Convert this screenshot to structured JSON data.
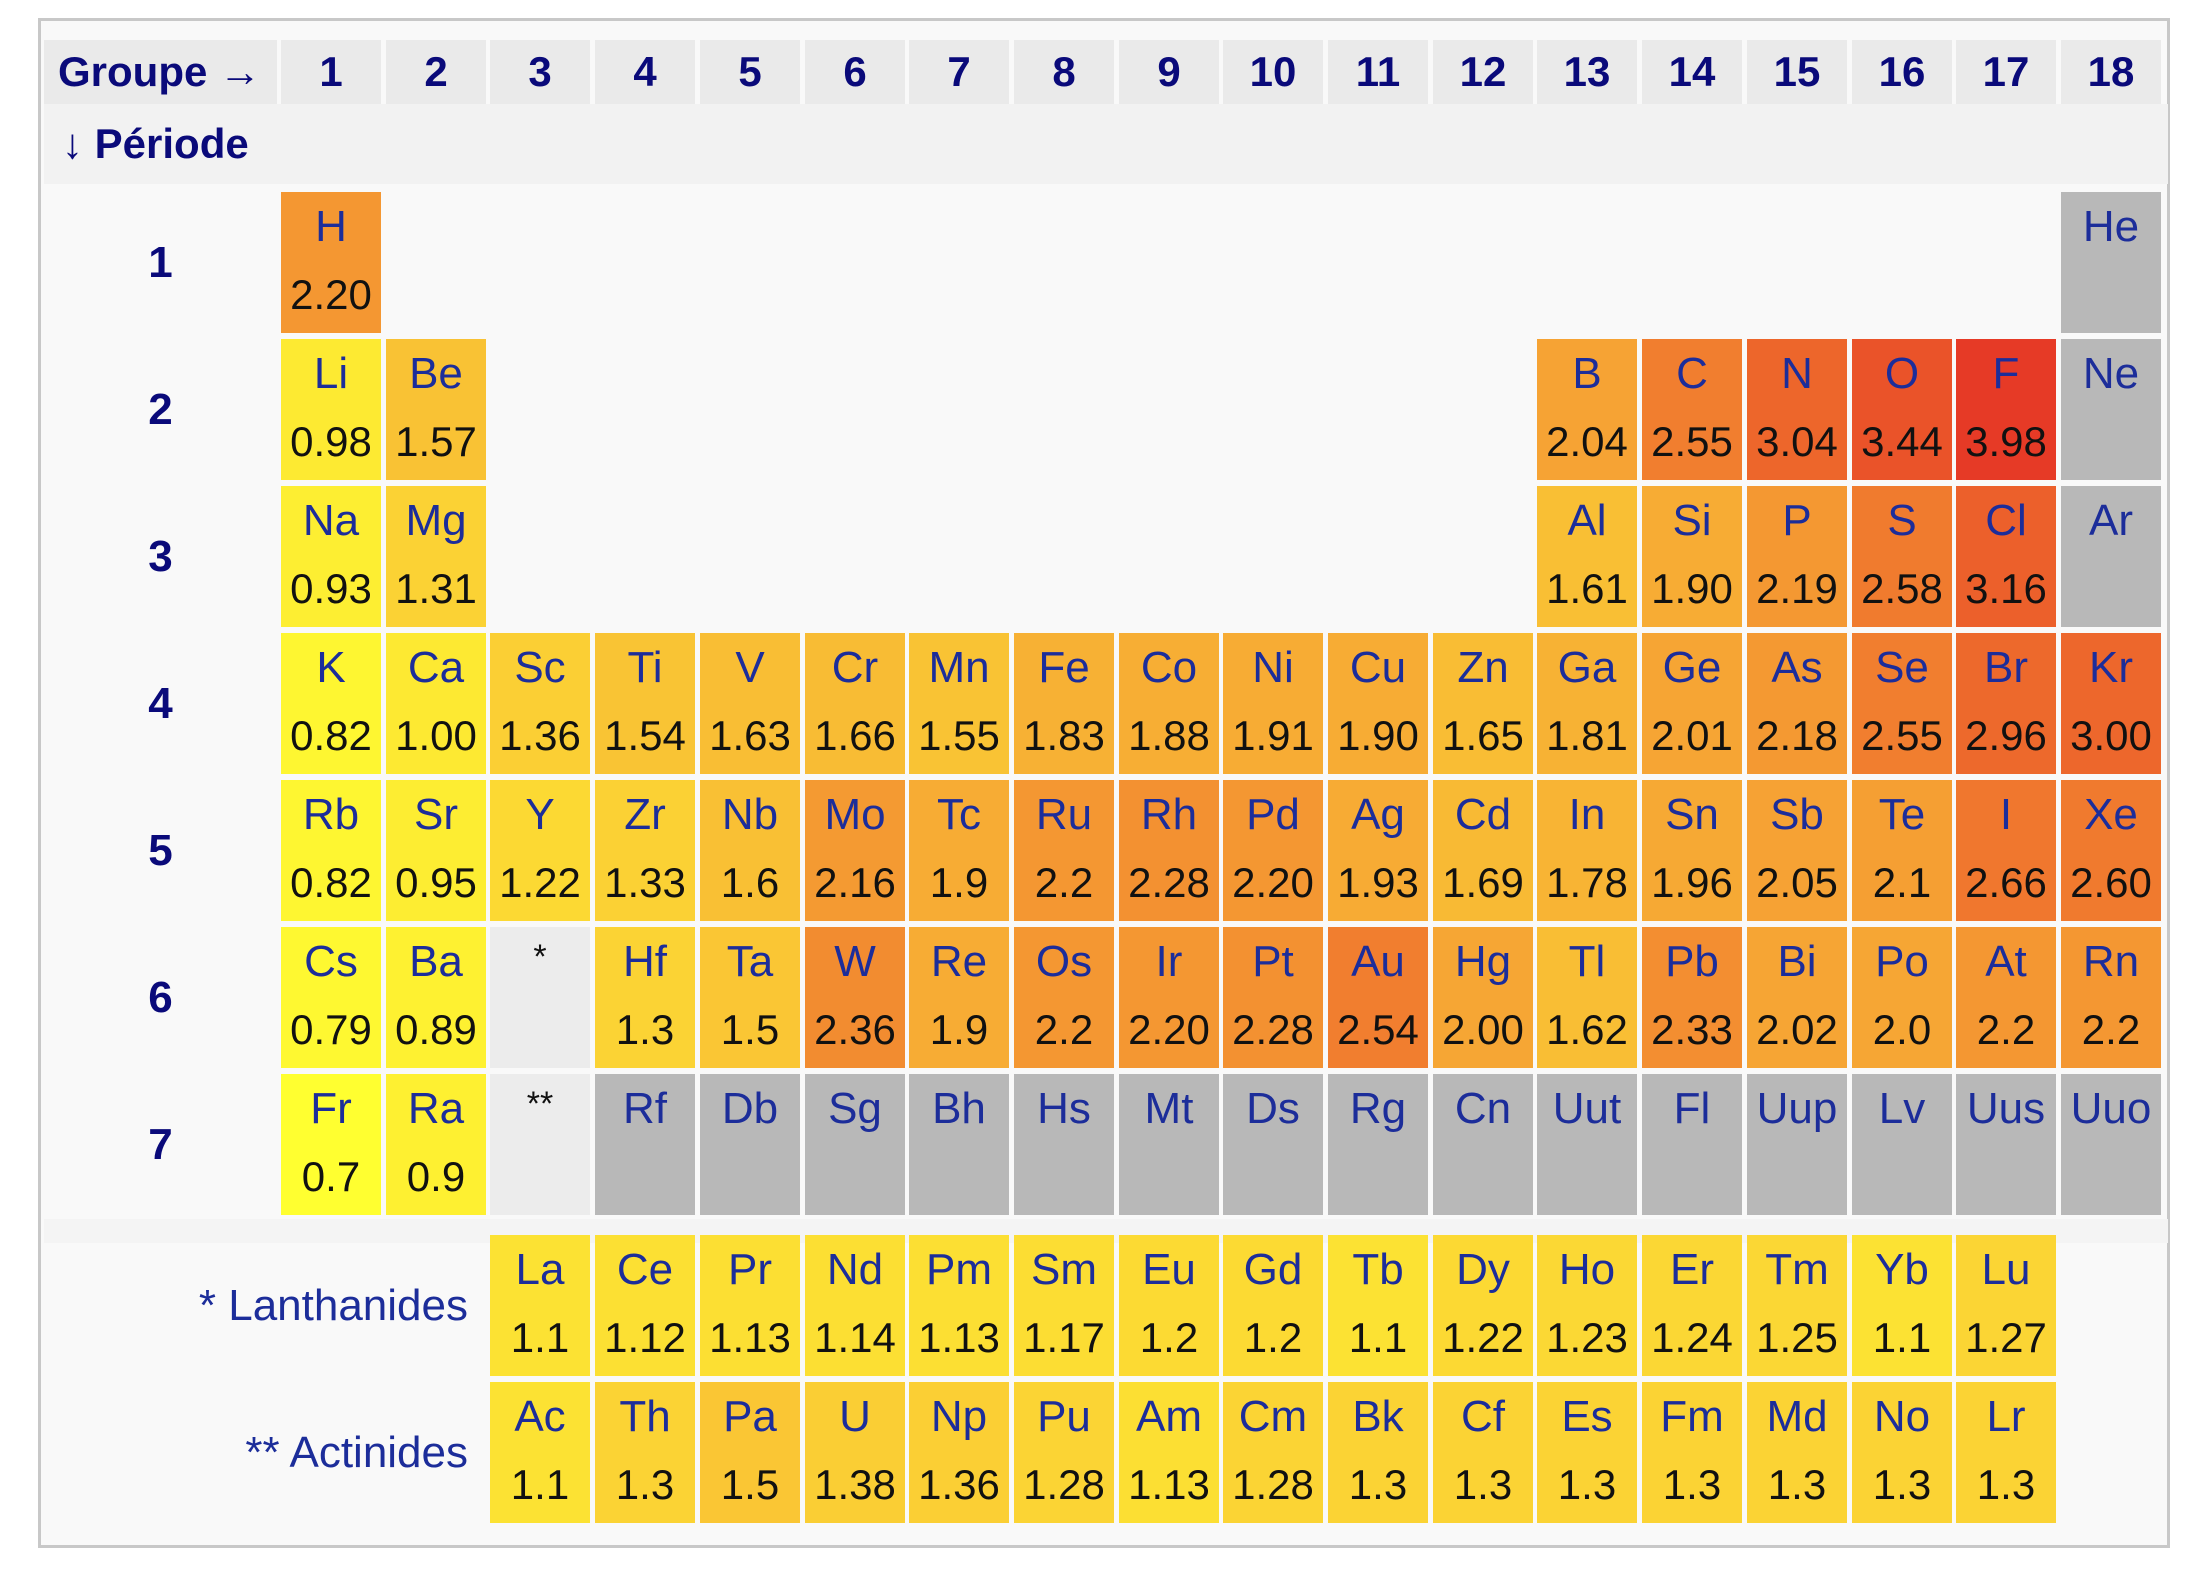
{
  "header": {
    "groupe_label": "Groupe →",
    "periode_label": "↓ Période",
    "groups": [
      "1",
      "2",
      "3",
      "4",
      "5",
      "6",
      "7",
      "8",
      "9",
      "10",
      "11",
      "12",
      "13",
      "14",
      "15",
      "16",
      "17",
      "18"
    ]
  },
  "periods": [
    "1",
    "2",
    "3",
    "4",
    "5",
    "6",
    "7"
  ],
  "colors": {
    "no_value": "#b8b8b8",
    "scale": [
      "#ffff30",
      "#fbd334",
      "#f6a634",
      "#f07a2e",
      "#e63a26"
    ]
  },
  "elements": [
    {
      "s": "H",
      "v": "2.20",
      "p": 1,
      "g": 1
    },
    {
      "s": "He",
      "v": "",
      "p": 1,
      "g": 18
    },
    {
      "s": "Li",
      "v": "0.98",
      "p": 2,
      "g": 1
    },
    {
      "s": "Be",
      "v": "1.57",
      "p": 2,
      "g": 2
    },
    {
      "s": "B",
      "v": "2.04",
      "p": 2,
      "g": 13
    },
    {
      "s": "C",
      "v": "2.55",
      "p": 2,
      "g": 14
    },
    {
      "s": "N",
      "v": "3.04",
      "p": 2,
      "g": 15
    },
    {
      "s": "O",
      "v": "3.44",
      "p": 2,
      "g": 16
    },
    {
      "s": "F",
      "v": "3.98",
      "p": 2,
      "g": 17
    },
    {
      "s": "Ne",
      "v": "",
      "p": 2,
      "g": 18
    },
    {
      "s": "Na",
      "v": "0.93",
      "p": 3,
      "g": 1
    },
    {
      "s": "Mg",
      "v": "1.31",
      "p": 3,
      "g": 2
    },
    {
      "s": "Al",
      "v": "1.61",
      "p": 3,
      "g": 13
    },
    {
      "s": "Si",
      "v": "1.90",
      "p": 3,
      "g": 14
    },
    {
      "s": "P",
      "v": "2.19",
      "p": 3,
      "g": 15
    },
    {
      "s": "S",
      "v": "2.58",
      "p": 3,
      "g": 16
    },
    {
      "s": "Cl",
      "v": "3.16",
      "p": 3,
      "g": 17
    },
    {
      "s": "Ar",
      "v": "",
      "p": 3,
      "g": 18
    },
    {
      "s": "K",
      "v": "0.82",
      "p": 4,
      "g": 1
    },
    {
      "s": "Ca",
      "v": "1.00",
      "p": 4,
      "g": 2
    },
    {
      "s": "Sc",
      "v": "1.36",
      "p": 4,
      "g": 3
    },
    {
      "s": "Ti",
      "v": "1.54",
      "p": 4,
      "g": 4
    },
    {
      "s": "V",
      "v": "1.63",
      "p": 4,
      "g": 5
    },
    {
      "s": "Cr",
      "v": "1.66",
      "p": 4,
      "g": 6
    },
    {
      "s": "Mn",
      "v": "1.55",
      "p": 4,
      "g": 7
    },
    {
      "s": "Fe",
      "v": "1.83",
      "p": 4,
      "g": 8
    },
    {
      "s": "Co",
      "v": "1.88",
      "p": 4,
      "g": 9
    },
    {
      "s": "Ni",
      "v": "1.91",
      "p": 4,
      "g": 10
    },
    {
      "s": "Cu",
      "v": "1.90",
      "p": 4,
      "g": 11
    },
    {
      "s": "Zn",
      "v": "1.65",
      "p": 4,
      "g": 12
    },
    {
      "s": "Ga",
      "v": "1.81",
      "p": 4,
      "g": 13
    },
    {
      "s": "Ge",
      "v": "2.01",
      "p": 4,
      "g": 14
    },
    {
      "s": "As",
      "v": "2.18",
      "p": 4,
      "g": 15
    },
    {
      "s": "Se",
      "v": "2.55",
      "p": 4,
      "g": 16
    },
    {
      "s": "Br",
      "v": "2.96",
      "p": 4,
      "g": 17
    },
    {
      "s": "Kr",
      "v": "3.00",
      "p": 4,
      "g": 18
    },
    {
      "s": "Rb",
      "v": "0.82",
      "p": 5,
      "g": 1
    },
    {
      "s": "Sr",
      "v": "0.95",
      "p": 5,
      "g": 2
    },
    {
      "s": "Y",
      "v": "1.22",
      "p": 5,
      "g": 3
    },
    {
      "s": "Zr",
      "v": "1.33",
      "p": 5,
      "g": 4
    },
    {
      "s": "Nb",
      "v": "1.6",
      "p": 5,
      "g": 5
    },
    {
      "s": "Mo",
      "v": "2.16",
      "p": 5,
      "g": 6
    },
    {
      "s": "Tc",
      "v": "1.9",
      "p": 5,
      "g": 7
    },
    {
      "s": "Ru",
      "v": "2.2",
      "p": 5,
      "g": 8
    },
    {
      "s": "Rh",
      "v": "2.28",
      "p": 5,
      "g": 9
    },
    {
      "s": "Pd",
      "v": "2.20",
      "p": 5,
      "g": 10
    },
    {
      "s": "Ag",
      "v": "1.93",
      "p": 5,
      "g": 11
    },
    {
      "s": "Cd",
      "v": "1.69",
      "p": 5,
      "g": 12
    },
    {
      "s": "In",
      "v": "1.78",
      "p": 5,
      "g": 13
    },
    {
      "s": "Sn",
      "v": "1.96",
      "p": 5,
      "g": 14
    },
    {
      "s": "Sb",
      "v": "2.05",
      "p": 5,
      "g": 15
    },
    {
      "s": "Te",
      "v": "2.1",
      "p": 5,
      "g": 16
    },
    {
      "s": "I",
      "v": "2.66",
      "p": 5,
      "g": 17
    },
    {
      "s": "Xe",
      "v": "2.60",
      "p": 5,
      "g": 18
    },
    {
      "s": "Cs",
      "v": "0.79",
      "p": 6,
      "g": 1
    },
    {
      "s": "Ba",
      "v": "0.89",
      "p": 6,
      "g": 2
    },
    {
      "s": "Hf",
      "v": "1.3",
      "p": 6,
      "g": 4
    },
    {
      "s": "Ta",
      "v": "1.5",
      "p": 6,
      "g": 5
    },
    {
      "s": "W",
      "v": "2.36",
      "p": 6,
      "g": 6
    },
    {
      "s": "Re",
      "v": "1.9",
      "p": 6,
      "g": 7
    },
    {
      "s": "Os",
      "v": "2.2",
      "p": 6,
      "g": 8
    },
    {
      "s": "Ir",
      "v": "2.20",
      "p": 6,
      "g": 9
    },
    {
      "s": "Pt",
      "v": "2.28",
      "p": 6,
      "g": 10
    },
    {
      "s": "Au",
      "v": "2.54",
      "p": 6,
      "g": 11
    },
    {
      "s": "Hg",
      "v": "2.00",
      "p": 6,
      "g": 12
    },
    {
      "s": "Tl",
      "v": "1.62",
      "p": 6,
      "g": 13
    },
    {
      "s": "Pb",
      "v": "2.33",
      "p": 6,
      "g": 14
    },
    {
      "s": "Bi",
      "v": "2.02",
      "p": 6,
      "g": 15
    },
    {
      "s": "Po",
      "v": "2.0",
      "p": 6,
      "g": 16
    },
    {
      "s": "At",
      "v": "2.2",
      "p": 6,
      "g": 17
    },
    {
      "s": "Rn",
      "v": "2.2",
      "p": 6,
      "g": 18
    },
    {
      "s": "Fr",
      "v": "0.7",
      "p": 7,
      "g": 1
    },
    {
      "s": "Ra",
      "v": "0.9",
      "p": 7,
      "g": 2
    },
    {
      "s": "Rf",
      "v": "",
      "p": 7,
      "g": 4
    },
    {
      "s": "Db",
      "v": "",
      "p": 7,
      "g": 5
    },
    {
      "s": "Sg",
      "v": "",
      "p": 7,
      "g": 6
    },
    {
      "s": "Bh",
      "v": "",
      "p": 7,
      "g": 7
    },
    {
      "s": "Hs",
      "v": "",
      "p": 7,
      "g": 8
    },
    {
      "s": "Mt",
      "v": "",
      "p": 7,
      "g": 9
    },
    {
      "s": "Ds",
      "v": "",
      "p": 7,
      "g": 10
    },
    {
      "s": "Rg",
      "v": "",
      "p": 7,
      "g": 11
    },
    {
      "s": "Cn",
      "v": "",
      "p": 7,
      "g": 12
    },
    {
      "s": "Uut",
      "v": "",
      "p": 7,
      "g": 13
    },
    {
      "s": "Fl",
      "v": "",
      "p": 7,
      "g": 14
    },
    {
      "s": "Uup",
      "v": "",
      "p": 7,
      "g": 15
    },
    {
      "s": "Lv",
      "v": "",
      "p": 7,
      "g": 16
    },
    {
      "s": "Uus",
      "v": "",
      "p": 7,
      "g": 17
    },
    {
      "s": "Uuo",
      "v": "",
      "p": 7,
      "g": 18
    }
  ],
  "series_refs": [
    {
      "mark": "*",
      "p": 6,
      "g": 3
    },
    {
      "mark": "**",
      "p": 7,
      "g": 3
    }
  ],
  "lanthanides": {
    "label": "* Lanthanides",
    "elements": [
      {
        "s": "La",
        "v": "1.1"
      },
      {
        "s": "Ce",
        "v": "1.12"
      },
      {
        "s": "Pr",
        "v": "1.13"
      },
      {
        "s": "Nd",
        "v": "1.14"
      },
      {
        "s": "Pm",
        "v": "1.13"
      },
      {
        "s": "Sm",
        "v": "1.17"
      },
      {
        "s": "Eu",
        "v": "1.2"
      },
      {
        "s": "Gd",
        "v": "1.2"
      },
      {
        "s": "Tb",
        "v": "1.1"
      },
      {
        "s": "Dy",
        "v": "1.22"
      },
      {
        "s": "Ho",
        "v": "1.23"
      },
      {
        "s": "Er",
        "v": "1.24"
      },
      {
        "s": "Tm",
        "v": "1.25"
      },
      {
        "s": "Yb",
        "v": "1.1"
      },
      {
        "s": "Lu",
        "v": "1.27"
      }
    ]
  },
  "actinides": {
    "label": "** Actinides",
    "elements": [
      {
        "s": "Ac",
        "v": "1.1"
      },
      {
        "s": "Th",
        "v": "1.3"
      },
      {
        "s": "Pa",
        "v": "1.5"
      },
      {
        "s": "U",
        "v": "1.38"
      },
      {
        "s": "Np",
        "v": "1.36"
      },
      {
        "s": "Pu",
        "v": "1.28"
      },
      {
        "s": "Am",
        "v": "1.13"
      },
      {
        "s": "Cm",
        "v": "1.28"
      },
      {
        "s": "Bk",
        "v": "1.3"
      },
      {
        "s": "Cf",
        "v": "1.3"
      },
      {
        "s": "Es",
        "v": "1.3"
      },
      {
        "s": "Fm",
        "v": "1.3"
      },
      {
        "s": "Md",
        "v": "1.3"
      },
      {
        "s": "No",
        "v": "1.3"
      },
      {
        "s": "Lr",
        "v": "1.3"
      }
    ]
  }
}
